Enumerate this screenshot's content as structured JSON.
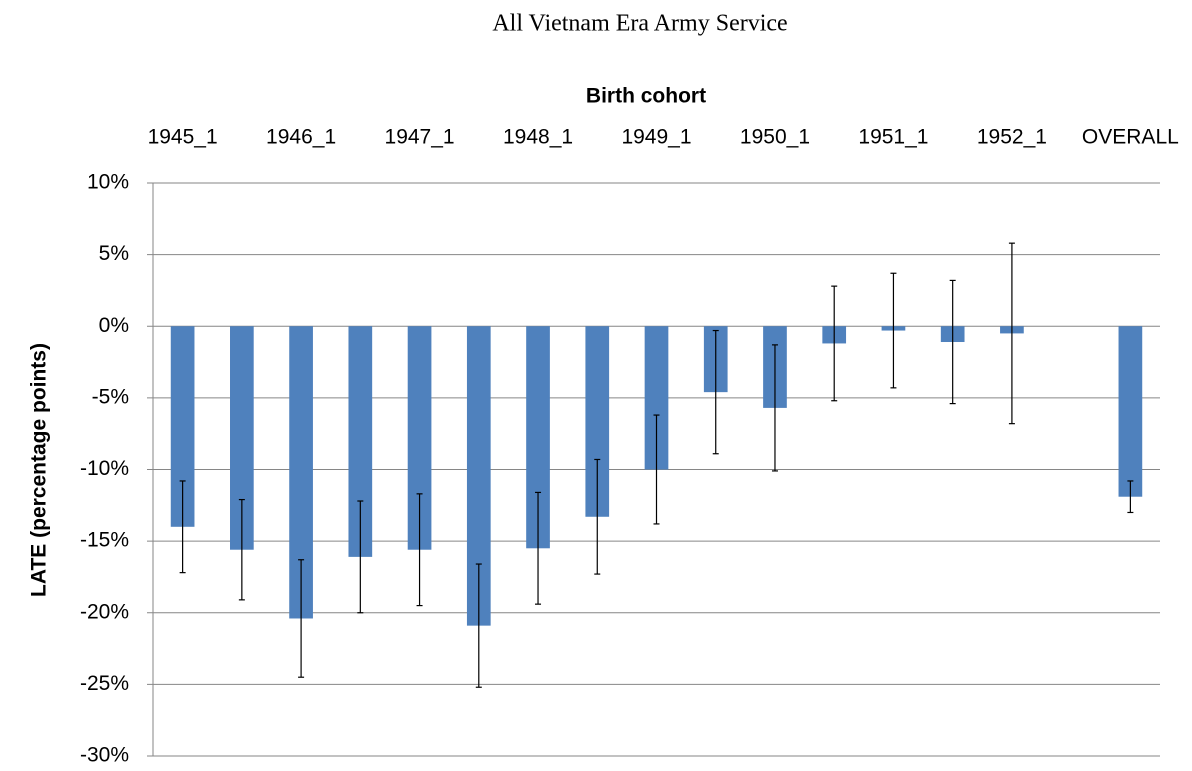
{
  "chart_data": {
    "type": "bar",
    "title": "All Vietnam Era Army Service",
    "x_label": "Birth cohort",
    "y_label": "LATE  (percentage points)",
    "categories": [
      "1945_1",
      null,
      "1946_1",
      null,
      "1947_1",
      null,
      "1948_1",
      null,
      "1949_1",
      null,
      "1950_1",
      null,
      "1951_1",
      null,
      "1952_1",
      null,
      "OVERALL"
    ],
    "values": [
      -14.0,
      -15.6,
      -20.4,
      -16.1,
      -15.6,
      -20.9,
      -15.5,
      -13.3,
      -10.0,
      -4.6,
      -5.7,
      -1.2,
      -0.3,
      -1.1,
      -0.5,
      null,
      -11.9
    ],
    "errors": [
      3.2,
      3.5,
      4.1,
      3.9,
      3.9,
      4.3,
      3.9,
      4.0,
      3.8,
      4.3,
      4.4,
      4.0,
      4.0,
      4.3,
      6.3,
      null,
      1.1
    ],
    "color": "#4f81bd",
    "ylim": [
      -30,
      10
    ],
    "yticks": [
      {
        "value": -30,
        "label": "-30%"
      },
      {
        "value": -25,
        "label": "-25%"
      },
      {
        "value": -20,
        "label": "-20%"
      },
      {
        "value": -15,
        "label": "-15%"
      },
      {
        "value": -10,
        "label": "-10%"
      },
      {
        "value": -5,
        "label": "-5%"
      },
      {
        "value": 0,
        "label": "0%"
      },
      {
        "value": 5,
        "label": "5%"
      },
      {
        "value": 10,
        "label": "10%"
      }
    ],
    "grid": true
  }
}
